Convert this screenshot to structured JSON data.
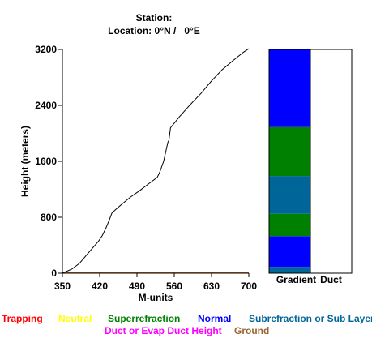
{
  "header": {
    "station_label": "Station:",
    "location_label": "Location:",
    "location_value": "0°N /   0°E"
  },
  "chart_data": {
    "type": "line",
    "xlabel": "M-units",
    "ylabel": "Height (meters)",
    "xlim": [
      350,
      700
    ],
    "ylim": [
      0,
      3200
    ],
    "x_ticks": [
      "350",
      "420",
      "490",
      "560",
      "630",
      "700"
    ],
    "y_ticks": [
      "0",
      "800",
      "1600",
      "2400",
      "3200"
    ],
    "series": [
      {
        "x": [
          350,
          368,
          375,
          382,
          392,
          402,
          410,
          418,
          425,
          432,
          438,
          443,
          450,
          462,
          478,
          495,
          512,
          528,
          533,
          540,
          548,
          550,
          553,
          570,
          590,
          610,
          630,
          650,
          672,
          690,
          703
        ],
        "y": [
          0,
          60,
          100,
          140,
          230,
          320,
          390,
          460,
          540,
          650,
          760,
          860,
          910,
          990,
          1090,
          1180,
          1280,
          1370,
          1450,
          1600,
          1870,
          1900,
          2080,
          2240,
          2410,
          2570,
          2750,
          2910,
          3050,
          3160,
          3210
        ],
        "color": "#000000"
      }
    ],
    "ground_color": "#8b4513",
    "gradient_bar": {
      "label": "Gradient",
      "segments": [
        {
          "from": 0,
          "to": 90,
          "color": "#006699"
        },
        {
          "from": 90,
          "to": 530,
          "color": "#0000ff"
        },
        {
          "from": 530,
          "to": 850,
          "color": "#008000"
        },
        {
          "from": 850,
          "to": 1390,
          "color": "#006699"
        },
        {
          "from": 1390,
          "to": 2090,
          "color": "#008000"
        },
        {
          "from": 2090,
          "to": 3200,
          "color": "#0000ff"
        }
      ]
    },
    "duct_bar": {
      "label": "Duct",
      "segments": []
    }
  },
  "legend": [
    {
      "label": "Trapping",
      "color": "#ff0000"
    },
    {
      "label": "Neutral",
      "color": "#ffff00"
    },
    {
      "label": "Superrefraction",
      "color": "#008000"
    },
    {
      "label": "Normal",
      "color": "#0000ff"
    },
    {
      "label": "Subrefraction or Sub Layer",
      "color": "#006699"
    },
    {
      "label": "Duct or Evap Duct Height",
      "color": "#ff00ff"
    },
    {
      "label": "Ground",
      "color": "#996633"
    }
  ]
}
